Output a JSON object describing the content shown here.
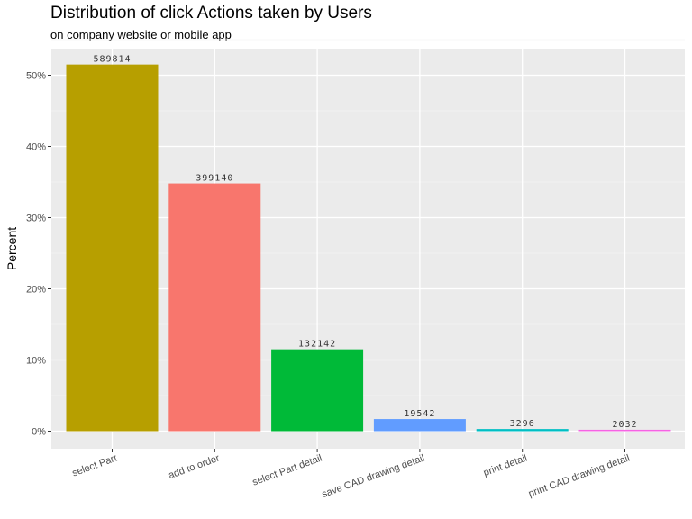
{
  "chart_data": {
    "type": "bar",
    "title": "Distribution of click Actions taken by Users",
    "subtitle": "on company website or mobile app",
    "xlabel": "",
    "ylabel": "Percent",
    "categories": [
      "select Part",
      "add to order",
      "select Part detail",
      "save CAD drawing detail",
      "print detail",
      "print CAD drawing detail"
    ],
    "values": [
      51.5,
      34.8,
      11.5,
      1.7,
      0.3,
      0.2
    ],
    "counts": [
      "589814",
      "399140",
      "132142",
      "19542",
      "3296",
      "2032"
    ],
    "colors": [
      "#B79F00",
      "#F8766D",
      "#00BA38",
      "#619CFF",
      "#00BFC4",
      "#F564E3"
    ],
    "ylim": [
      0,
      55
    ],
    "yticks": [
      0,
      10,
      20,
      30,
      40,
      50
    ],
    "ytick_labels": [
      "0%",
      "10%",
      "20%",
      "30%",
      "40%",
      "50%"
    ],
    "grid": true,
    "legend": "none"
  }
}
